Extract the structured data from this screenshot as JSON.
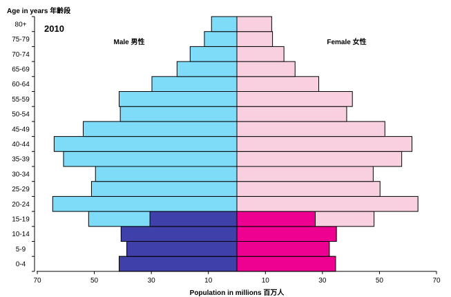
{
  "chart_data": {
    "type": "bar",
    "orientation": "horizontal-population-pyramid",
    "year": "2010",
    "ylabel": "Age in years 年齡段",
    "xlabel": "Population in millions 百万人",
    "male_label": "Male 男性",
    "female_label": "Female 女性",
    "categories": [
      "0-4",
      "5-9",
      "10-14",
      "15-19",
      "20-24",
      "25-29",
      "30-34",
      "35-39",
      "40-44",
      "45-49",
      "50-54",
      "55-59",
      "60-64",
      "65-69",
      "70-74",
      "75-79",
      "80+"
    ],
    "x_ticks": [
      "70",
      "50",
      "30",
      "10",
      "10",
      "30",
      "50",
      "70"
    ],
    "xlim": [
      0,
      70
    ],
    "series": [
      {
        "name": "Male 男性",
        "values": [
          41.3,
          38.6,
          40.6,
          52.0,
          64.6,
          51.0,
          49.6,
          60.8,
          64.1,
          53.9,
          40.9,
          41.3,
          29.8,
          21.0,
          16.4,
          11.4,
          8.9
        ],
        "dark_portion": [
          41.3,
          38.6,
          40.6,
          30.5,
          0,
          0,
          0,
          0,
          0,
          0,
          0,
          0,
          0,
          0,
          0,
          0,
          0
        ]
      },
      {
        "name": "Female 女性",
        "values": [
          34.6,
          32.4,
          34.9,
          48.1,
          63.5,
          50.2,
          47.8,
          57.8,
          61.4,
          51.9,
          38.5,
          40.5,
          28.7,
          20.4,
          16.5,
          12.5,
          12.2
        ],
        "dark_portion": [
          34.6,
          32.4,
          34.9,
          27.5,
          0,
          0,
          0,
          0,
          0,
          0,
          0,
          0,
          0,
          0,
          0,
          0,
          0
        ]
      }
    ],
    "colors": {
      "male_light": "#7fdcf8",
      "male_dark": "#4040aa",
      "female_light": "#f8d0e0",
      "female_dark": "#ee0090",
      "stroke": "#000000"
    },
    "grid": false,
    "legend": "none"
  }
}
